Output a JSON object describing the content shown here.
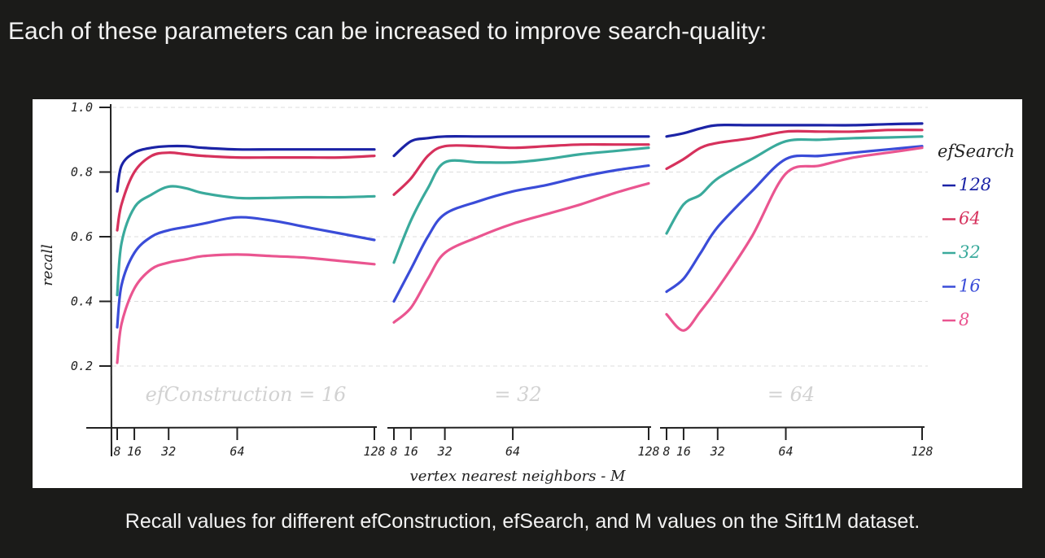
{
  "header": {
    "text": "Each of these parameters can be increased to improve search-quality:"
  },
  "caption": {
    "text": "Recall values for different efConstruction, efSearch, and M values on the Sift1M dataset."
  },
  "colors": {
    "page_background": "#1b1b19",
    "figure_background": "#ffffff",
    "axis": "#222222",
    "grid": "#dddddd",
    "efSearch_128": "#1b23a6",
    "efSearch_64": "#d6315c",
    "efSearch_32": "#3aaa9c",
    "efSearch_16": "#3a4cd8",
    "efSearch_8": "#ea5590"
  },
  "chart_data": {
    "type": "line",
    "xlabel": "vertex nearest neighbors - M",
    "ylabel": "recall",
    "ylim": [
      0.2,
      1.0
    ],
    "xlim": [
      8,
      128
    ],
    "y_ticks": [
      "0.2",
      "0.4",
      "0.6",
      "0.8",
      "1.0"
    ],
    "y_tick_values": [
      0.2,
      0.4,
      0.6,
      0.8,
      1.0
    ],
    "x_ticks": [
      "8",
      "16",
      "32",
      "64",
      "128"
    ],
    "x_tick_values": [
      8,
      16,
      32,
      64,
      128
    ],
    "grid": true,
    "legend": {
      "title": "efSearch",
      "position": "right",
      "entries": [
        "128",
        "64",
        "32",
        "16",
        "8"
      ]
    },
    "panels": [
      {
        "label": "efConstruction = 16",
        "series": [
          {
            "name": "128",
            "color": "#1b23a6",
            "x": [
              8,
              10,
              16,
              24,
              32,
              40,
              48,
              64,
              80,
              96,
              112,
              128
            ],
            "y": [
              0.74,
              0.82,
              0.86,
              0.875,
              0.88,
              0.88,
              0.875,
              0.87,
              0.87,
              0.87,
              0.87,
              0.87
            ]
          },
          {
            "name": "64",
            "color": "#d6315c",
            "x": [
              8,
              10,
              16,
              24,
              32,
              40,
              48,
              64,
              80,
              96,
              112,
              128
            ],
            "y": [
              0.62,
              0.7,
              0.8,
              0.85,
              0.86,
              0.855,
              0.85,
              0.845,
              0.845,
              0.845,
              0.845,
              0.85
            ]
          },
          {
            "name": "32",
            "color": "#3aaa9c",
            "x": [
              8,
              10,
              16,
              24,
              32,
              40,
              48,
              64,
              80,
              96,
              112,
              128
            ],
            "y": [
              0.42,
              0.58,
              0.69,
              0.73,
              0.755,
              0.75,
              0.735,
              0.72,
              0.72,
              0.722,
              0.722,
              0.725
            ]
          },
          {
            "name": "16",
            "color": "#3a4cd8",
            "x": [
              8,
              10,
              16,
              24,
              32,
              40,
              48,
              64,
              80,
              96,
              112,
              128
            ],
            "y": [
              0.32,
              0.45,
              0.55,
              0.6,
              0.62,
              0.63,
              0.64,
              0.66,
              0.65,
              0.63,
              0.61,
              0.59
            ]
          },
          {
            "name": "8",
            "color": "#ea5590",
            "x": [
              8,
              10,
              16,
              24,
              32,
              40,
              48,
              64,
              80,
              96,
              112,
              128
            ],
            "y": [
              0.21,
              0.33,
              0.44,
              0.5,
              0.52,
              0.53,
              0.54,
              0.545,
              0.54,
              0.535,
              0.525,
              0.515
            ]
          }
        ]
      },
      {
        "label": "= 32",
        "series": [
          {
            "name": "128",
            "color": "#1b23a6",
            "x": [
              8,
              16,
              24,
              32,
              48,
              64,
              80,
              96,
              112,
              128
            ],
            "y": [
              0.85,
              0.895,
              0.905,
              0.91,
              0.91,
              0.91,
              0.91,
              0.91,
              0.91,
              0.91
            ]
          },
          {
            "name": "64",
            "color": "#d6315c",
            "x": [
              8,
              16,
              24,
              32,
              48,
              64,
              80,
              96,
              112,
              128
            ],
            "y": [
              0.73,
              0.78,
              0.85,
              0.88,
              0.88,
              0.875,
              0.88,
              0.885,
              0.885,
              0.885
            ]
          },
          {
            "name": "32",
            "color": "#3aaa9c",
            "x": [
              8,
              16,
              24,
              32,
              48,
              64,
              80,
              96,
              112,
              128
            ],
            "y": [
              0.52,
              0.65,
              0.75,
              0.83,
              0.83,
              0.83,
              0.84,
              0.855,
              0.865,
              0.875
            ]
          },
          {
            "name": "16",
            "color": "#3a4cd8",
            "x": [
              8,
              16,
              24,
              32,
              48,
              64,
              80,
              96,
              112,
              128
            ],
            "y": [
              0.4,
              0.5,
              0.6,
              0.67,
              0.71,
              0.74,
              0.76,
              0.785,
              0.805,
              0.82
            ]
          },
          {
            "name": "8",
            "color": "#ea5590",
            "x": [
              8,
              16,
              24,
              32,
              48,
              64,
              80,
              96,
              112,
              128
            ],
            "y": [
              0.335,
              0.38,
              0.47,
              0.55,
              0.6,
              0.64,
              0.67,
              0.7,
              0.735,
              0.765
            ]
          }
        ]
      },
      {
        "label": "= 64",
        "series": [
          {
            "name": "128",
            "color": "#1b23a6",
            "x": [
              8,
              16,
              24,
              32,
              48,
              64,
              80,
              96,
              112,
              128
            ],
            "y": [
              0.91,
              0.92,
              0.935,
              0.945,
              0.945,
              0.945,
              0.945,
              0.945,
              0.948,
              0.95
            ]
          },
          {
            "name": "64",
            "color": "#d6315c",
            "x": [
              8,
              16,
              24,
              32,
              48,
              64,
              80,
              96,
              112,
              128
            ],
            "y": [
              0.81,
              0.84,
              0.875,
              0.89,
              0.905,
              0.925,
              0.925,
              0.925,
              0.93,
              0.93
            ]
          },
          {
            "name": "32",
            "color": "#3aaa9c",
            "x": [
              8,
              16,
              24,
              32,
              48,
              64,
              80,
              96,
              112,
              128
            ],
            "y": [
              0.61,
              0.7,
              0.73,
              0.78,
              0.84,
              0.895,
              0.9,
              0.905,
              0.907,
              0.91
            ]
          },
          {
            "name": "16",
            "color": "#3a4cd8",
            "x": [
              8,
              16,
              24,
              32,
              48,
              64,
              80,
              96,
              112,
              128
            ],
            "y": [
              0.43,
              0.47,
              0.55,
              0.63,
              0.74,
              0.84,
              0.85,
              0.86,
              0.87,
              0.88
            ]
          },
          {
            "name": "8",
            "color": "#ea5590",
            "x": [
              8,
              16,
              24,
              32,
              48,
              64,
              80,
              96,
              112,
              128
            ],
            "y": [
              0.36,
              0.31,
              0.37,
              0.44,
              0.6,
              0.795,
              0.82,
              0.845,
              0.86,
              0.875
            ]
          }
        ]
      }
    ]
  }
}
